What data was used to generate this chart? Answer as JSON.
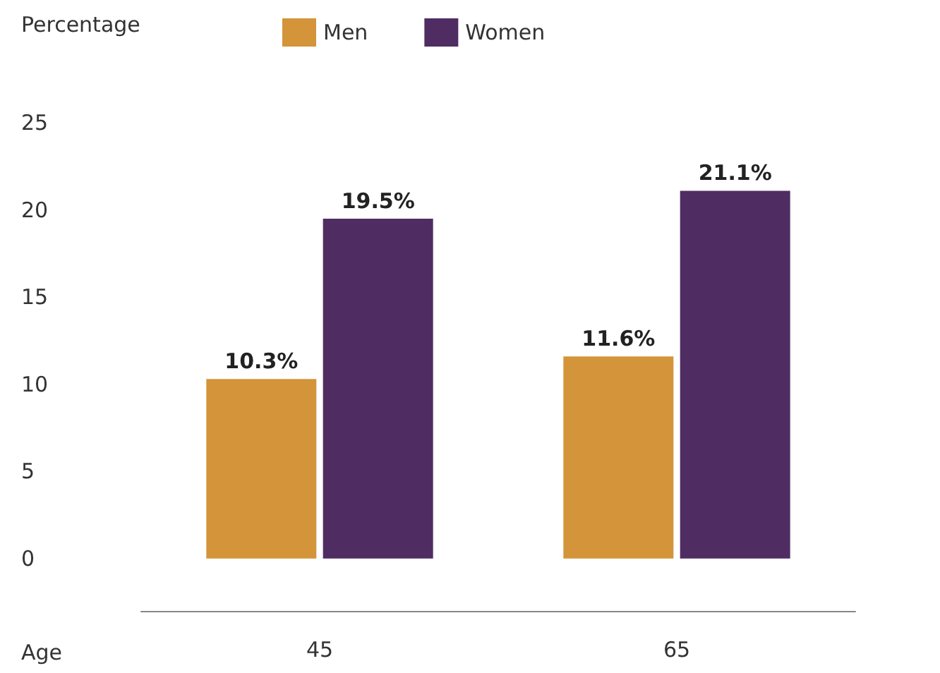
{
  "chart_data": {
    "type": "bar",
    "ylabel": "Percentage",
    "xlabel": "Age",
    "categories": [
      "45",
      "65"
    ],
    "series": [
      {
        "name": "Men",
        "color": "#d3943a",
        "values": [
          10.3,
          11.6
        ],
        "value_labels": [
          "10.3%",
          "11.6%"
        ]
      },
      {
        "name": "Women",
        "color": "#4f2d63",
        "values": [
          19.5,
          21.1
        ],
        "value_labels": [
          "19.5%",
          "21.1%"
        ]
      }
    ],
    "ylim": [
      -3,
      25
    ],
    "yticks": [
      0,
      5,
      10,
      15,
      20,
      25
    ],
    "grid": false,
    "legend": "top"
  }
}
